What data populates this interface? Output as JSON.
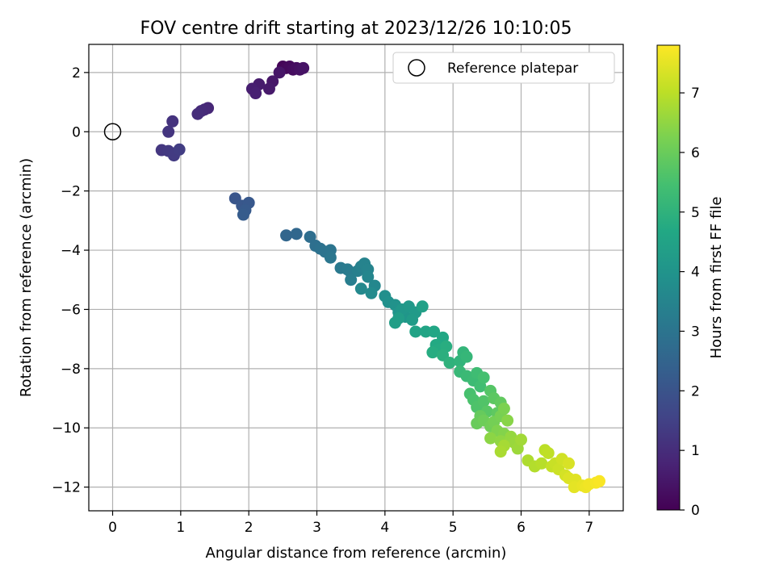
{
  "chart_data": {
    "type": "scatter",
    "title": "FOV centre drift starting at 2023/12/26 10:10:05",
    "xlabel": "Angular distance from reference (arcmin)",
    "ylabel": "Rotation from reference (arcmin)",
    "xlim": [
      -0.35,
      7.5
    ],
    "ylim": [
      -12.8,
      2.95
    ],
    "xticks": [
      0,
      1,
      2,
      3,
      4,
      5,
      6,
      7
    ],
    "yticks": [
      2,
      0,
      -2,
      -4,
      -6,
      -8,
      -10,
      -12
    ],
    "grid": true,
    "legend": {
      "placement": "top-right",
      "entries": [
        "Reference platepar"
      ]
    },
    "reference_point": {
      "x": 0,
      "y": 0,
      "label": "Reference platepar"
    },
    "colorbar": {
      "label": "Hours from first FF file",
      "colormap": "viridis",
      "range": [
        0,
        7.8
      ],
      "ticks": [
        0,
        1,
        2,
        3,
        4,
        5,
        6,
        7
      ]
    },
    "series": [
      {
        "points": [
          [
            2.5,
            2.2,
            0.1
          ],
          [
            2.55,
            2.15,
            0.15
          ],
          [
            2.6,
            2.2,
            0.2
          ],
          [
            2.65,
            2.1,
            0.25
          ],
          [
            2.7,
            2.15,
            0.3
          ],
          [
            2.75,
            2.1,
            0.35
          ],
          [
            2.8,
            2.15,
            0.4
          ],
          [
            2.45,
            2.0,
            0.45
          ],
          [
            2.35,
            1.7,
            0.5
          ],
          [
            2.3,
            1.45,
            0.55
          ],
          [
            2.15,
            1.6,
            0.6
          ],
          [
            2.05,
            1.45,
            0.65
          ],
          [
            2.1,
            1.3,
            0.7
          ],
          [
            1.4,
            0.8,
            0.85
          ],
          [
            1.35,
            0.75,
            0.9
          ],
          [
            1.3,
            0.7,
            0.95
          ],
          [
            1.25,
            0.6,
            1.0
          ],
          [
            0.88,
            0.35,
            1.15
          ],
          [
            0.82,
            0.0,
            1.2
          ],
          [
            0.72,
            -0.62,
            1.25
          ],
          [
            0.82,
            -0.65,
            1.3
          ],
          [
            0.9,
            -0.8,
            1.35
          ],
          [
            0.98,
            -0.6,
            1.4
          ],
          [
            1.8,
            -2.25,
            2.05
          ],
          [
            1.9,
            -2.5,
            2.1
          ],
          [
            2.0,
            -2.4,
            2.15
          ],
          [
            1.95,
            -2.65,
            2.2
          ],
          [
            1.92,
            -2.8,
            2.25
          ],
          [
            2.55,
            -3.5,
            2.55
          ],
          [
            2.7,
            -3.45,
            2.6
          ],
          [
            2.9,
            -3.55,
            2.8
          ],
          [
            2.98,
            -3.85,
            2.85
          ],
          [
            3.05,
            -3.95,
            2.9
          ],
          [
            3.12,
            -4.05,
            2.95
          ],
          [
            3.2,
            -4.0,
            3.0
          ],
          [
            3.2,
            -4.25,
            3.05
          ],
          [
            3.35,
            -4.6,
            3.15
          ],
          [
            3.45,
            -4.65,
            3.2
          ],
          [
            3.5,
            -4.75,
            3.25
          ],
          [
            3.5,
            -5.0,
            3.3
          ],
          [
            3.6,
            -4.7,
            3.35
          ],
          [
            3.65,
            -4.55,
            3.4
          ],
          [
            3.7,
            -4.45,
            3.45
          ],
          [
            3.75,
            -4.65,
            3.5
          ],
          [
            3.75,
            -4.9,
            3.55
          ],
          [
            3.85,
            -5.2,
            3.6
          ],
          [
            3.65,
            -5.3,
            3.65
          ],
          [
            3.8,
            -5.45,
            3.7
          ],
          [
            4.0,
            -5.55,
            3.85
          ],
          [
            4.05,
            -5.75,
            3.9
          ],
          [
            4.15,
            -5.85,
            3.95
          ],
          [
            4.2,
            -6.1,
            4.0
          ],
          [
            4.3,
            -6.25,
            4.05
          ],
          [
            4.25,
            -6.0,
            4.1
          ],
          [
            4.35,
            -5.9,
            4.15
          ],
          [
            4.45,
            -6.1,
            4.2
          ],
          [
            4.4,
            -6.35,
            4.25
          ],
          [
            4.2,
            -6.3,
            4.3
          ],
          [
            4.15,
            -6.45,
            4.35
          ],
          [
            4.55,
            -5.9,
            4.4
          ],
          [
            4.45,
            -6.75,
            4.5
          ],
          [
            4.6,
            -6.75,
            4.55
          ],
          [
            4.72,
            -6.75,
            4.6
          ],
          [
            4.85,
            -6.95,
            4.65
          ],
          [
            4.75,
            -7.2,
            4.7
          ],
          [
            4.8,
            -7.35,
            4.75
          ],
          [
            4.7,
            -7.45,
            4.8
          ],
          [
            4.9,
            -7.25,
            4.85
          ],
          [
            4.85,
            -7.55,
            4.9
          ],
          [
            4.95,
            -7.8,
            5.0
          ],
          [
            5.1,
            -7.75,
            5.05
          ],
          [
            5.15,
            -7.45,
            5.1
          ],
          [
            5.2,
            -7.6,
            5.15
          ],
          [
            5.1,
            -8.1,
            5.2
          ],
          [
            5.2,
            -8.25,
            5.25
          ],
          [
            5.3,
            -8.4,
            5.3
          ],
          [
            5.35,
            -8.15,
            5.35
          ],
          [
            5.4,
            -8.6,
            5.4
          ],
          [
            5.45,
            -8.3,
            5.45
          ],
          [
            5.25,
            -8.85,
            5.5
          ],
          [
            5.3,
            -9.05,
            5.55
          ],
          [
            5.35,
            -9.3,
            5.6
          ],
          [
            5.45,
            -9.1,
            5.65
          ],
          [
            5.55,
            -8.75,
            5.7
          ],
          [
            5.5,
            -9.45,
            5.75
          ],
          [
            5.6,
            -9.0,
            5.8
          ],
          [
            5.65,
            -9.5,
            5.85
          ],
          [
            5.7,
            -9.15,
            5.9
          ],
          [
            5.4,
            -9.6,
            5.95
          ],
          [
            5.35,
            -9.85,
            6.0
          ],
          [
            5.45,
            -9.75,
            6.05
          ],
          [
            5.55,
            -9.95,
            6.1
          ],
          [
            5.6,
            -9.8,
            6.15
          ],
          [
            5.7,
            -9.6,
            6.2
          ],
          [
            5.75,
            -9.35,
            6.25
          ],
          [
            5.65,
            -10.1,
            6.3
          ],
          [
            5.75,
            -10.2,
            6.35
          ],
          [
            5.8,
            -9.75,
            6.4
          ],
          [
            5.55,
            -10.35,
            6.45
          ],
          [
            5.7,
            -10.45,
            6.5
          ],
          [
            5.85,
            -10.3,
            6.55
          ],
          [
            5.9,
            -10.5,
            6.6
          ],
          [
            5.95,
            -10.7,
            6.65
          ],
          [
            6.0,
            -10.4,
            6.7
          ],
          [
            5.75,
            -10.6,
            6.75
          ],
          [
            5.7,
            -10.8,
            6.8
          ],
          [
            6.1,
            -11.1,
            6.85
          ],
          [
            6.2,
            -11.3,
            6.9
          ],
          [
            6.3,
            -11.2,
            6.95
          ],
          [
            6.35,
            -10.75,
            7.0
          ],
          [
            6.4,
            -10.85,
            7.05
          ],
          [
            6.45,
            -11.3,
            7.1
          ],
          [
            6.5,
            -11.2,
            7.15
          ],
          [
            6.55,
            -11.4,
            7.2
          ],
          [
            6.6,
            -11.05,
            7.25
          ],
          [
            6.65,
            -11.6,
            7.3
          ],
          [
            6.7,
            -11.2,
            7.35
          ],
          [
            6.7,
            -11.7,
            7.4
          ],
          [
            6.8,
            -11.75,
            7.45
          ],
          [
            6.78,
            -12.0,
            7.5
          ],
          [
            6.9,
            -11.95,
            7.55
          ],
          [
            6.95,
            -12.0,
            7.6
          ],
          [
            7.0,
            -11.9,
            7.65
          ],
          [
            7.1,
            -11.85,
            7.7
          ],
          [
            7.15,
            -11.8,
            7.75
          ]
        ]
      }
    ]
  }
}
